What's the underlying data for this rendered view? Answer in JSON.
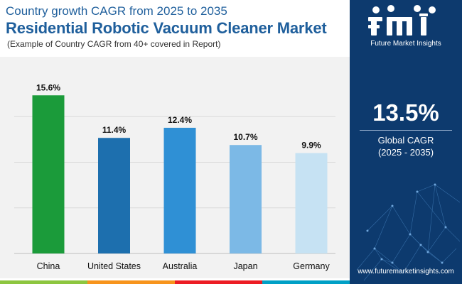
{
  "header": {
    "subtitle": "Country growth CAGR from 2025 to 2035",
    "title": "Residential Robotic Vacuum Cleaner Market",
    "note": "(Example of Country CAGR from 40+ covered in Report)"
  },
  "chart_data": {
    "type": "bar",
    "categories": [
      "China",
      "United States",
      "Australia",
      "Japan",
      "Germany"
    ],
    "values": [
      15.6,
      11.4,
      12.4,
      10.7,
      9.9
    ],
    "data_labels": [
      "15.6%",
      "11.4%",
      "12.4%",
      "10.7%",
      "9.9%"
    ],
    "bar_colors": [
      "#1b9b3a",
      "#1d6fae",
      "#2f90d5",
      "#7cb9e6",
      "#c6e2f3"
    ],
    "ylim": [
      0,
      18
    ],
    "gridlines": [
      4.5,
      9,
      13.5
    ],
    "grid": true,
    "legend": "none",
    "xlabel": "",
    "ylabel": ""
  },
  "side_panel": {
    "brand_name": "Future Market Insights",
    "global_cagr_value": "13.5%",
    "global_cagr_label": "Global CAGR",
    "global_cagr_period": "(2025 - 2035)",
    "website": "www.futuremarketinsights.com"
  },
  "colors": {
    "title": "#1f5f9c",
    "panel": "#0d3a6e",
    "plot_background": "#f2f2f2",
    "strip": [
      "#8dc63f",
      "#f7941d",
      "#ec1c24",
      "#00a0c6"
    ]
  },
  "logo_icons": [
    "leaf-icon",
    "plane-icon",
    "graph-icon",
    "rocket-icon"
  ]
}
